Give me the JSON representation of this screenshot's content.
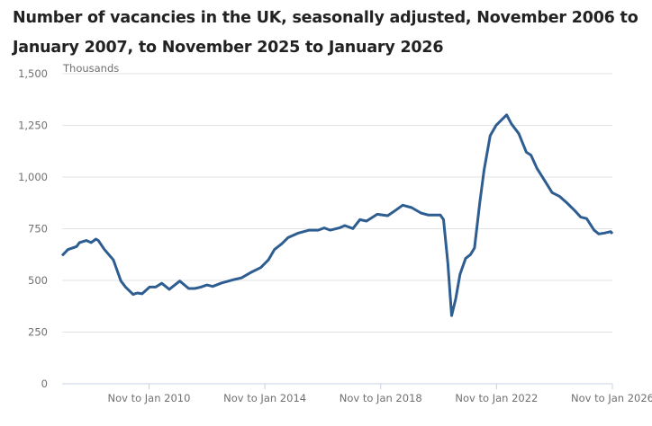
{
  "chart_data": {
    "type": "line",
    "title": "Number of vacancies in the UK, seasonally adjusted, November 2006 to January 2007, to November 2025 to January 2026",
    "ylabel": "Thousands",
    "xlabel": "",
    "ylim": [
      0,
      1500
    ],
    "xlim": [
      2007.0,
      2026.0
    ],
    "yticks": [
      0,
      250,
      500,
      750,
      1000,
      1250,
      1500
    ],
    "ytick_labels": [
      "0",
      "250",
      "500",
      "750",
      "1,000",
      "1,250",
      "1,500"
    ],
    "xticks": [
      2010,
      2014,
      2018,
      2022,
      2026
    ],
    "xtick_labels": [
      "Nov to Jan 2010",
      "Nov to Jan 2014",
      "Nov to Jan 2018",
      "Nov to Jan 2022",
      "Nov to Jan 2026"
    ],
    "grid": true,
    "color": "#2e5d91",
    "series": [
      {
        "name": "Vacancies",
        "x": [
          2007.0,
          2007.2,
          2007.5,
          2007.6,
          2007.84,
          2008.0,
          2008.17,
          2008.25,
          2008.46,
          2008.77,
          2009.03,
          2009.19,
          2009.45,
          2009.6,
          2009.76,
          2010.02,
          2010.23,
          2010.44,
          2010.7,
          2011.06,
          2011.37,
          2011.58,
          2011.79,
          2012.0,
          2012.2,
          2012.51,
          2012.93,
          2013.19,
          2013.55,
          2013.86,
          2014.12,
          2014.33,
          2014.59,
          2014.8,
          2015.16,
          2015.53,
          2015.84,
          2016.05,
          2016.26,
          2016.57,
          2016.76,
          2017.04,
          2017.28,
          2017.51,
          2017.88,
          2018.24,
          2018.5,
          2018.76,
          2019.07,
          2019.39,
          2019.65,
          2020.06,
          2020.17,
          2020.32,
          2020.45,
          2020.59,
          2020.74,
          2020.93,
          2021.1,
          2021.24,
          2021.42,
          2021.57,
          2021.78,
          2021.99,
          2022.2,
          2022.35,
          2022.51,
          2022.77,
          2023.03,
          2023.19,
          2023.4,
          2023.66,
          2023.92,
          2024.18,
          2024.44,
          2024.7,
          2024.91,
          2025.11,
          2025.37,
          2025.53,
          2025.73,
          2025.94,
          2026.0
        ],
        "values": [
          620,
          649,
          664,
          683,
          693,
          683,
          700,
          693,
          649,
          599,
          497,
          468,
          432,
          439,
          435,
          468,
          468,
          486,
          457,
          497,
          461,
          461,
          468,
          478,
          471,
          488,
          504,
          512,
          541,
          562,
          599,
          649,
          678,
          707,
          729,
          743,
          743,
          754,
          743,
          754,
          765,
          751,
          794,
          787,
          820,
          813,
          838,
          864,
          852,
          826,
          816,
          816,
          794,
          584,
          330,
          410,
          529,
          606,
          625,
          657,
          874,
          1033,
          1200,
          1251,
          1280,
          1301,
          1258,
          1210,
          1120,
          1106,
          1041,
          983,
          925,
          906,
          874,
          838,
          806,
          799,
          743,
          725,
          729,
          736,
          726
        ]
      }
    ]
  }
}
